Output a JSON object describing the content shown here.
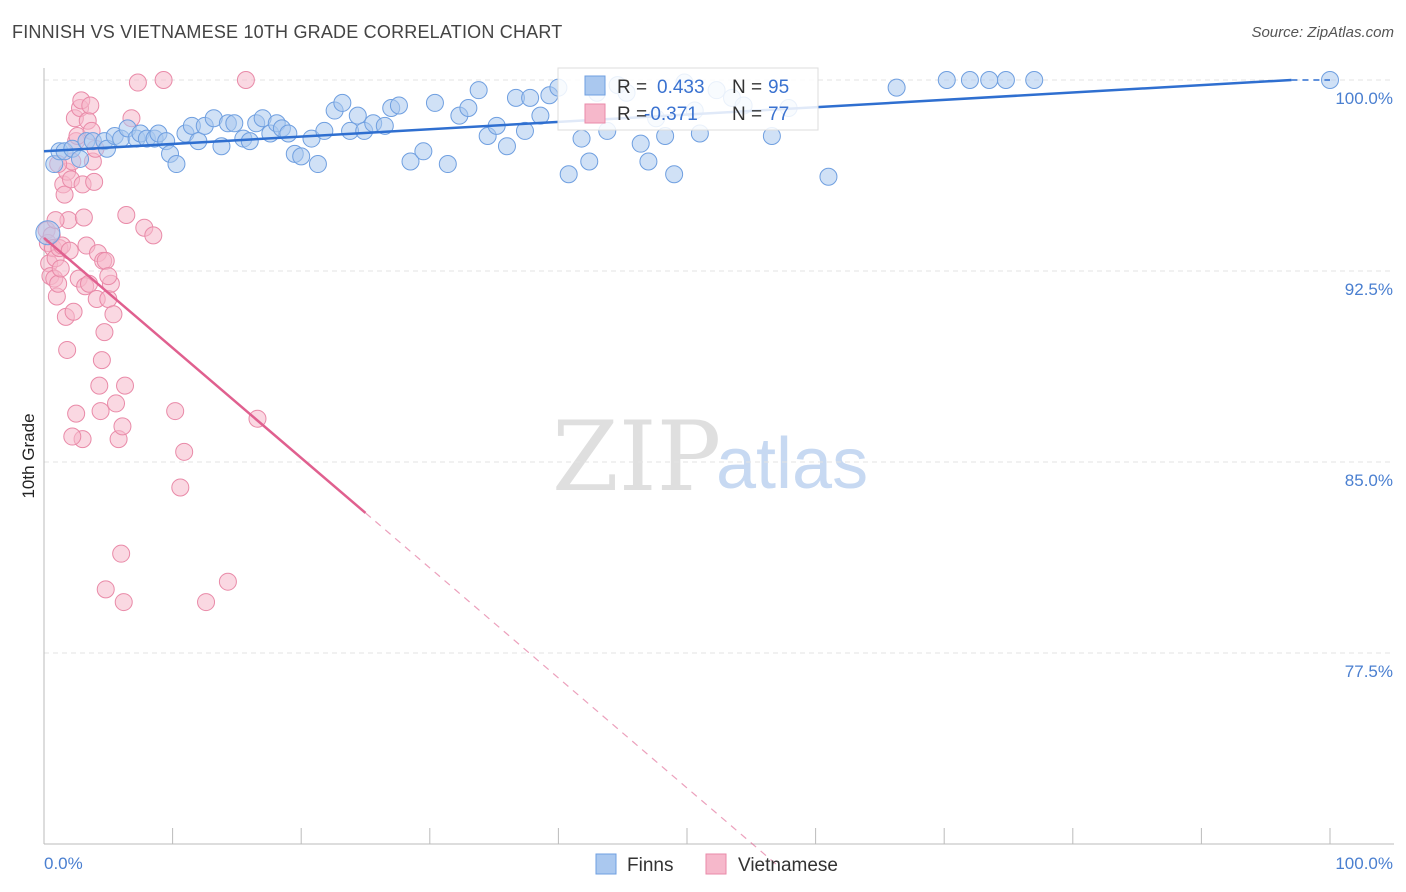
{
  "header": {
    "title": "FINNISH VS VIETNAMESE 10TH GRADE CORRELATION CHART",
    "source": "Source: ZipAtlas.com"
  },
  "watermark": {
    "zip": "ZIP",
    "atlas": "atlas"
  },
  "colors": {
    "finns_fill": "#aac8ef",
    "finns_stroke": "#6f9fe0",
    "finns_line": "#2f6fd0",
    "viet_fill": "#f6b8cb",
    "viet_stroke": "#e98aa8",
    "viet_line": "#e0608f",
    "grid": "#e3e3e3",
    "tick_text": "#4a7fd0"
  },
  "legend": {
    "finns": {
      "r_label": "R =",
      "r_value": "0.433",
      "n_label": "N =",
      "n_value": "95"
    },
    "vietnamese": {
      "r_label": "R =",
      "r_value": "-0.371",
      "n_label": "N =",
      "n_value": "77"
    }
  },
  "bottom_legend": {
    "finns": "Finns",
    "vietnamese": "Vietnamese"
  },
  "chart_data": {
    "type": "scatter",
    "title": "FINNISH VS VIETNAMESE 10TH GRADE CORRELATION CHART",
    "xlabel": "",
    "ylabel": "10th Grade",
    "xlim": [
      0,
      100
    ],
    "ylim": [
      70.0,
      101.0
    ],
    "x_tick_labels": [
      "0.0%",
      "100.0%"
    ],
    "y_ticks": [
      {
        "value": 100.0,
        "label": "100.0%"
      },
      {
        "value": 92.5,
        "label": "92.5%"
      },
      {
        "value": 85.0,
        "label": "85.0%"
      },
      {
        "value": 77.5,
        "label": "77.5%"
      }
    ],
    "series": [
      {
        "name": "Finns",
        "r": 0.433,
        "n": 95,
        "trend": {
          "x": [
            0,
            97
          ],
          "y": [
            97.2,
            100.0
          ],
          "dashed_x": [
            97,
            100
          ]
        },
        "points": [
          [
            0.3,
            94.0
          ],
          [
            0.8,
            96.7
          ],
          [
            1.2,
            97.2
          ],
          [
            1.6,
            97.2
          ],
          [
            2.2,
            97.3
          ],
          [
            2.8,
            96.9
          ],
          [
            3.3,
            97.6
          ],
          [
            3.8,
            97.6
          ],
          [
            4.7,
            97.6
          ],
          [
            4.9,
            97.3
          ],
          [
            5.5,
            97.8
          ],
          [
            6.0,
            97.7
          ],
          [
            6.5,
            98.1
          ],
          [
            7.2,
            97.7
          ],
          [
            7.5,
            97.9
          ],
          [
            8.0,
            97.7
          ],
          [
            8.6,
            97.7
          ],
          [
            8.9,
            97.9
          ],
          [
            9.5,
            97.6
          ],
          [
            9.8,
            97.1
          ],
          [
            10.3,
            96.7
          ],
          [
            11.0,
            97.9
          ],
          [
            11.5,
            98.2
          ],
          [
            12.0,
            97.6
          ],
          [
            12.5,
            98.2
          ],
          [
            13.2,
            98.5
          ],
          [
            13.8,
            97.4
          ],
          [
            14.3,
            98.3
          ],
          [
            14.8,
            98.3
          ],
          [
            15.5,
            97.7
          ],
          [
            16.0,
            97.6
          ],
          [
            16.5,
            98.3
          ],
          [
            17.0,
            98.5
          ],
          [
            17.6,
            97.9
          ],
          [
            18.1,
            98.3
          ],
          [
            18.5,
            98.1
          ],
          [
            19.0,
            97.9
          ],
          [
            19.5,
            97.1
          ],
          [
            20.0,
            97.0
          ],
          [
            20.8,
            97.7
          ],
          [
            21.3,
            96.7
          ],
          [
            21.8,
            98.0
          ],
          [
            22.6,
            98.8
          ],
          [
            23.2,
            99.1
          ],
          [
            23.8,
            98.0
          ],
          [
            24.4,
            98.6
          ],
          [
            24.9,
            98.0
          ],
          [
            25.6,
            98.3
          ],
          [
            26.5,
            98.2
          ],
          [
            27.0,
            98.9
          ],
          [
            27.6,
            99.0
          ],
          [
            28.5,
            96.8
          ],
          [
            29.5,
            97.2
          ],
          [
            30.4,
            99.1
          ],
          [
            31.4,
            96.7
          ],
          [
            32.3,
            98.6
          ],
          [
            33.0,
            98.9
          ],
          [
            33.8,
            99.6
          ],
          [
            34.5,
            97.8
          ],
          [
            35.2,
            98.2
          ],
          [
            36.0,
            97.4
          ],
          [
            36.7,
            99.3
          ],
          [
            37.4,
            98.0
          ],
          [
            37.8,
            99.3
          ],
          [
            38.6,
            98.6
          ],
          [
            39.3,
            99.4
          ],
          [
            40.0,
            99.7
          ],
          [
            40.8,
            96.3
          ],
          [
            41.8,
            97.7
          ],
          [
            42.4,
            96.8
          ],
          [
            43.0,
            99.5
          ],
          [
            43.8,
            98.0
          ],
          [
            44.6,
            99.8
          ],
          [
            45.3,
            99.5
          ],
          [
            46.4,
            97.5
          ],
          [
            47.0,
            96.8
          ],
          [
            47.6,
            98.5
          ],
          [
            48.3,
            97.8
          ],
          [
            49.0,
            96.3
          ],
          [
            49.8,
            99.9
          ],
          [
            50.6,
            98.8
          ],
          [
            51.0,
            97.9
          ],
          [
            52.3,
            99.6
          ],
          [
            53.5,
            99.3
          ],
          [
            54.4,
            99.0
          ],
          [
            56.6,
            97.8
          ],
          [
            57.9,
            98.9
          ],
          [
            61.0,
            96.2
          ],
          [
            66.3,
            99.7
          ],
          [
            70.2,
            100.0
          ],
          [
            72.0,
            100.0
          ],
          [
            73.5,
            100.0
          ],
          [
            74.8,
            100.0
          ],
          [
            77.0,
            100.0
          ],
          [
            100.0,
            100.0
          ]
        ]
      },
      {
        "name": "Vietnamese",
        "r": -0.371,
        "n": 77,
        "trend": {
          "x": [
            0,
            25
          ],
          "y": [
            93.8,
            83.0
          ],
          "dashed_x": [
            25,
            57
          ]
        },
        "points": [
          [
            0.2,
            94.1
          ],
          [
            0.3,
            93.6
          ],
          [
            0.4,
            92.8
          ],
          [
            0.5,
            92.3
          ],
          [
            0.6,
            93.9
          ],
          [
            0.7,
            93.4
          ],
          [
            0.8,
            92.2
          ],
          [
            0.9,
            93.0
          ],
          [
            1.0,
            91.5
          ],
          [
            1.1,
            92.0
          ],
          [
            1.2,
            93.4
          ],
          [
            1.3,
            92.6
          ],
          [
            1.4,
            93.5
          ],
          [
            1.5,
            95.9
          ],
          [
            1.6,
            95.5
          ],
          [
            1.7,
            90.7
          ],
          [
            1.8,
            96.4
          ],
          [
            1.9,
            94.5
          ],
          [
            2.0,
            93.3
          ],
          [
            2.1,
            96.1
          ],
          [
            2.2,
            96.8
          ],
          [
            2.3,
            90.9
          ],
          [
            2.4,
            98.5
          ],
          [
            2.5,
            97.6
          ],
          [
            2.6,
            97.8
          ],
          [
            2.7,
            92.2
          ],
          [
            2.8,
            98.9
          ],
          [
            2.9,
            99.2
          ],
          [
            3.0,
            95.9
          ],
          [
            3.1,
            94.6
          ],
          [
            3.2,
            91.9
          ],
          [
            3.3,
            93.5
          ],
          [
            3.4,
            98.4
          ],
          [
            3.5,
            92.0
          ],
          [
            3.6,
            99.0
          ],
          [
            3.7,
            98.0
          ],
          [
            3.8,
            96.8
          ],
          [
            3.9,
            96.0
          ],
          [
            4.0,
            97.3
          ],
          [
            4.1,
            91.4
          ],
          [
            4.2,
            93.2
          ],
          [
            4.3,
            88.0
          ],
          [
            4.4,
            87.0
          ],
          [
            4.5,
            89.0
          ],
          [
            4.6,
            92.9
          ],
          [
            4.7,
            90.1
          ],
          [
            4.8,
            92.9
          ],
          [
            5.0,
            91.4
          ],
          [
            5.2,
            92.0
          ],
          [
            5.4,
            90.8
          ],
          [
            5.6,
            87.3
          ],
          [
            5.8,
            85.9
          ],
          [
            6.0,
            81.4
          ],
          [
            6.2,
            79.5
          ],
          [
            6.4,
            94.7
          ],
          [
            6.8,
            98.5
          ],
          [
            7.3,
            99.9
          ],
          [
            7.8,
            94.2
          ],
          [
            8.5,
            93.9
          ],
          [
            9.3,
            100.0
          ],
          [
            10.2,
            87.0
          ],
          [
            10.6,
            84.0
          ],
          [
            10.9,
            85.4
          ],
          [
            12.6,
            79.5
          ],
          [
            14.3,
            80.3
          ],
          [
            15.7,
            100.0
          ],
          [
            16.6,
            86.7
          ],
          [
            2.5,
            86.9
          ],
          [
            1.8,
            89.4
          ],
          [
            3.0,
            85.9
          ],
          [
            2.2,
            86.0
          ],
          [
            1.1,
            96.7
          ],
          [
            0.9,
            94.5
          ],
          [
            5.0,
            92.3
          ],
          [
            6.1,
            86.4
          ],
          [
            4.8,
            80.0
          ],
          [
            6.3,
            88.0
          ]
        ]
      }
    ]
  }
}
